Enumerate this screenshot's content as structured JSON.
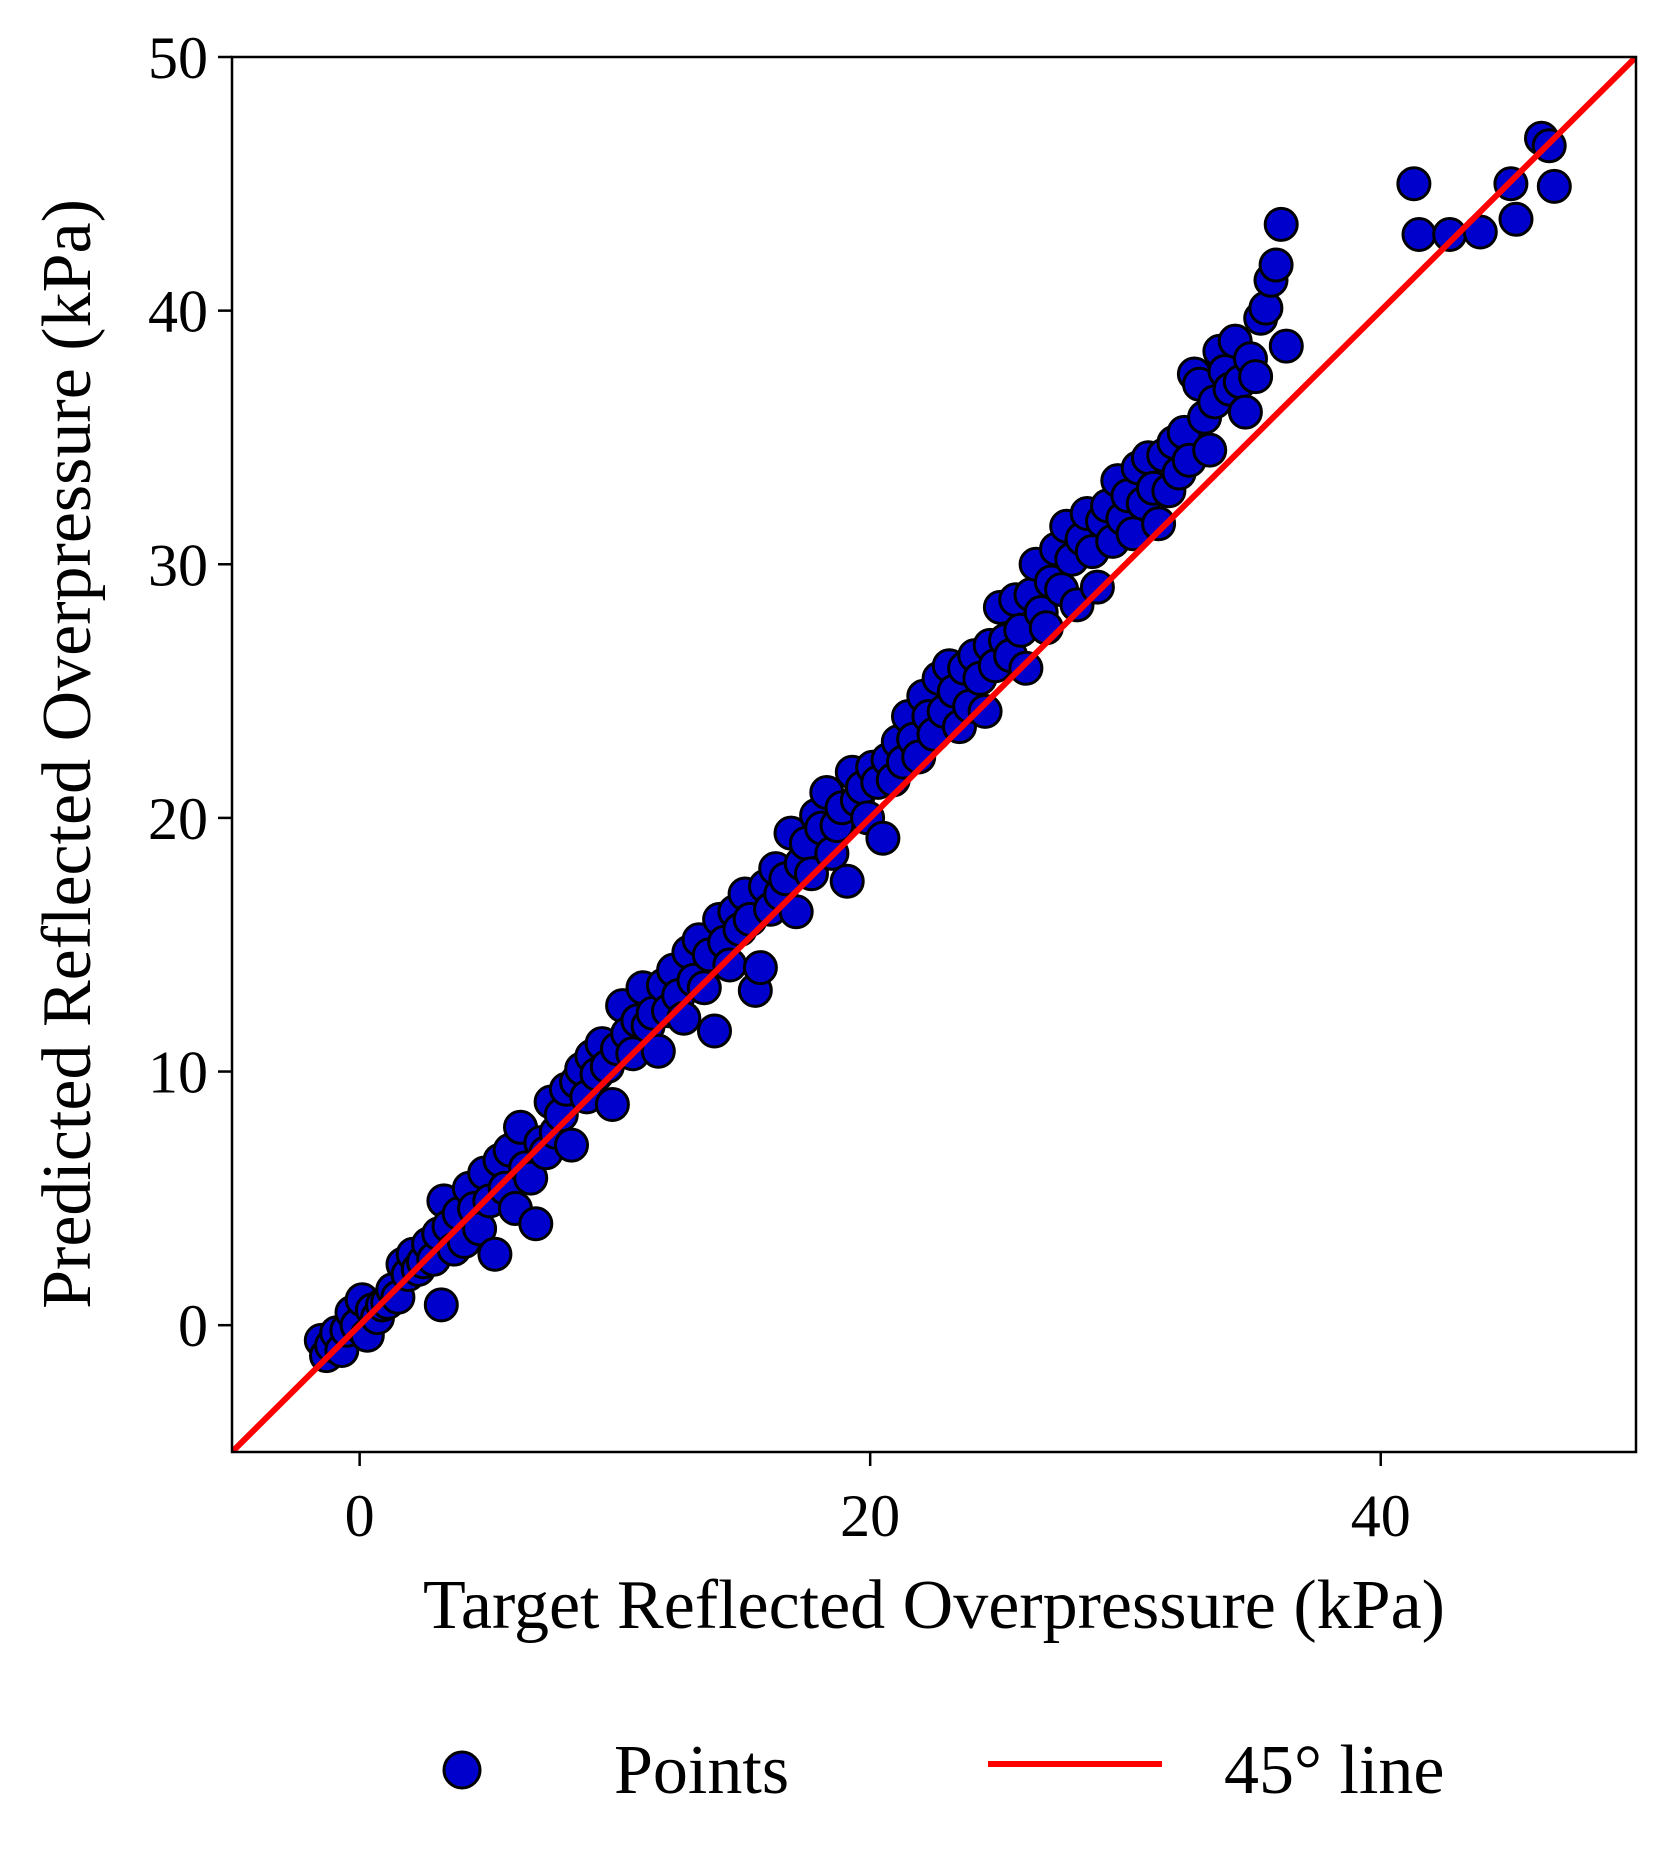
{
  "chart_data": {
    "type": "scatter",
    "title": "",
    "xlabel": "Target Reflected Overpressure (kPa)",
    "ylabel": "Predicted Reflected Overpressure (kPa)",
    "xlim": [
      -5,
      50
    ],
    "ylim": [
      -5,
      50
    ],
    "x_ticks": [
      0,
      20,
      40
    ],
    "y_ticks": [
      0,
      10,
      20,
      30,
      40,
      50
    ],
    "grid": false,
    "legend": {
      "placement": "bottom",
      "entries": [
        "Points",
        "45° line"
      ]
    },
    "colors": {
      "points_fill": "#0000cc",
      "points_edge": "#000000",
      "line": "#ff0000"
    },
    "series": [
      {
        "name": "Points",
        "type": "scatter",
        "points": [
          [
            -1.5,
            -0.6
          ],
          [
            -1.3,
            -1.2
          ],
          [
            -1.1,
            -0.8
          ],
          [
            -0.9,
            -0.3
          ],
          [
            -0.7,
            -1.0
          ],
          [
            -0.5,
            -0.2
          ],
          [
            -0.3,
            0.5
          ],
          [
            -0.1,
            0.0
          ],
          [
            0.1,
            1.0
          ],
          [
            0.3,
            -0.4
          ],
          [
            0.5,
            0.6
          ],
          [
            0.7,
            0.3
          ],
          [
            0.9,
            0.8
          ],
          [
            1.1,
            0.9
          ],
          [
            1.3,
            1.4
          ],
          [
            1.5,
            1.1
          ],
          [
            1.7,
            2.4
          ],
          [
            1.9,
            2.0
          ],
          [
            2.1,
            2.8
          ],
          [
            2.3,
            2.2
          ],
          [
            2.5,
            2.5
          ],
          [
            2.7,
            3.2
          ],
          [
            2.9,
            2.6
          ],
          [
            3.1,
            3.6
          ],
          [
            3.2,
            0.8
          ],
          [
            3.3,
            4.9
          ],
          [
            3.5,
            3.9
          ],
          [
            3.7,
            3.0
          ],
          [
            3.9,
            4.4
          ],
          [
            4.1,
            3.3
          ],
          [
            4.3,
            5.4
          ],
          [
            4.5,
            4.6
          ],
          [
            4.7,
            3.8
          ],
          [
            4.9,
            6.0
          ],
          [
            5.1,
            4.9
          ],
          [
            5.3,
            2.8
          ],
          [
            5.5,
            6.5
          ],
          [
            5.7,
            5.4
          ],
          [
            5.9,
            6.9
          ],
          [
            6.1,
            4.6
          ],
          [
            6.3,
            7.8
          ],
          [
            6.5,
            6.2
          ],
          [
            6.7,
            5.8
          ],
          [
            6.9,
            4.0
          ],
          [
            7.1,
            7.2
          ],
          [
            7.3,
            6.8
          ],
          [
            7.5,
            8.8
          ],
          [
            7.7,
            7.6
          ],
          [
            7.9,
            8.3
          ],
          [
            8.1,
            9.3
          ],
          [
            8.3,
            7.1
          ],
          [
            8.5,
            9.6
          ],
          [
            8.7,
            10.1
          ],
          [
            8.9,
            9.0
          ],
          [
            9.1,
            10.6
          ],
          [
            9.3,
            9.9
          ],
          [
            9.5,
            11.1
          ],
          [
            9.7,
            10.2
          ],
          [
            9.9,
            8.7
          ],
          [
            10.1,
            10.9
          ],
          [
            10.3,
            12.6
          ],
          [
            10.5,
            11.5
          ],
          [
            10.7,
            10.7
          ],
          [
            10.9,
            12.0
          ],
          [
            11.1,
            13.3
          ],
          [
            11.3,
            11.8
          ],
          [
            11.5,
            12.3
          ],
          [
            11.7,
            10.8
          ],
          [
            11.9,
            13.4
          ],
          [
            12.1,
            12.4
          ],
          [
            12.3,
            14.0
          ],
          [
            12.5,
            13.0
          ],
          [
            12.7,
            12.1
          ],
          [
            12.9,
            14.7
          ],
          [
            13.1,
            13.6
          ],
          [
            13.3,
            15.2
          ],
          [
            13.5,
            13.3
          ],
          [
            13.7,
            14.6
          ],
          [
            13.9,
            11.6
          ],
          [
            14.1,
            16.0
          ],
          [
            14.3,
            15.1
          ],
          [
            14.5,
            14.2
          ],
          [
            14.7,
            16.3
          ],
          [
            14.9,
            15.6
          ],
          [
            15.1,
            17.0
          ],
          [
            15.3,
            16.0
          ],
          [
            15.5,
            13.2
          ],
          [
            15.7,
            14.1
          ],
          [
            15.9,
            17.3
          ],
          [
            16.1,
            16.4
          ],
          [
            16.3,
            18.0
          ],
          [
            16.5,
            17.0
          ],
          [
            16.7,
            17.6
          ],
          [
            16.9,
            19.4
          ],
          [
            17.1,
            16.3
          ],
          [
            17.3,
            18.2
          ],
          [
            17.5,
            19.0
          ],
          [
            17.7,
            17.8
          ],
          [
            17.9,
            20.1
          ],
          [
            18.1,
            19.6
          ],
          [
            18.3,
            21.0
          ],
          [
            18.5,
            18.6
          ],
          [
            18.7,
            19.7
          ],
          [
            18.9,
            20.4
          ],
          [
            19.1,
            17.5
          ],
          [
            19.3,
            21.8
          ],
          [
            19.5,
            20.7
          ],
          [
            19.7,
            21.2
          ],
          [
            19.9,
            20.0
          ],
          [
            20.1,
            22.0
          ],
          [
            20.3,
            21.4
          ],
          [
            20.5,
            19.2
          ],
          [
            20.7,
            22.3
          ],
          [
            20.9,
            21.5
          ],
          [
            21.1,
            23.0
          ],
          [
            21.3,
            22.2
          ],
          [
            21.5,
            24.0
          ],
          [
            21.7,
            23.1
          ],
          [
            21.9,
            22.4
          ],
          [
            22.1,
            24.8
          ],
          [
            22.3,
            24.0
          ],
          [
            22.5,
            23.3
          ],
          [
            22.7,
            25.5
          ],
          [
            22.9,
            24.2
          ],
          [
            23.1,
            26.0
          ],
          [
            23.3,
            25.0
          ],
          [
            23.5,
            23.6
          ],
          [
            23.7,
            25.9
          ],
          [
            23.9,
            24.4
          ],
          [
            24.1,
            26.4
          ],
          [
            24.3,
            25.5
          ],
          [
            24.5,
            24.2
          ],
          [
            24.7,
            26.8
          ],
          [
            24.9,
            26.0
          ],
          [
            25.1,
            28.3
          ],
          [
            25.3,
            27.0
          ],
          [
            25.5,
            26.4
          ],
          [
            25.7,
            28.6
          ],
          [
            25.9,
            27.4
          ],
          [
            26.1,
            25.9
          ],
          [
            26.3,
            28.8
          ],
          [
            26.5,
            30.0
          ],
          [
            26.7,
            28.1
          ],
          [
            26.9,
            27.5
          ],
          [
            27.1,
            29.3
          ],
          [
            27.3,
            30.6
          ],
          [
            27.5,
            29.0
          ],
          [
            27.7,
            31.5
          ],
          [
            27.9,
            30.2
          ],
          [
            28.1,
            28.4
          ],
          [
            28.3,
            31.0
          ],
          [
            28.5,
            32.0
          ],
          [
            28.7,
            30.5
          ],
          [
            28.9,
            29.1
          ],
          [
            29.1,
            31.7
          ],
          [
            29.3,
            32.3
          ],
          [
            29.5,
            30.9
          ],
          [
            29.7,
            33.3
          ],
          [
            29.9,
            31.8
          ],
          [
            30.1,
            32.7
          ],
          [
            30.3,
            31.2
          ],
          [
            30.5,
            33.8
          ],
          [
            30.7,
            32.4
          ],
          [
            30.9,
            34.2
          ],
          [
            31.1,
            33.0
          ],
          [
            31.3,
            31.6
          ],
          [
            31.5,
            34.3
          ],
          [
            31.7,
            32.9
          ],
          [
            31.9,
            34.8
          ],
          [
            32.1,
            33.6
          ],
          [
            32.3,
            35.2
          ],
          [
            32.5,
            34.1
          ],
          [
            32.7,
            37.5
          ],
          [
            32.9,
            37.1
          ],
          [
            33.1,
            35.8
          ],
          [
            33.3,
            34.5
          ],
          [
            33.5,
            36.4
          ],
          [
            33.7,
            38.4
          ],
          [
            33.9,
            37.6
          ],
          [
            34.1,
            36.9
          ],
          [
            34.3,
            38.8
          ],
          [
            34.5,
            37.2
          ],
          [
            34.7,
            36.0
          ],
          [
            34.9,
            38.1
          ],
          [
            35.1,
            37.4
          ],
          [
            35.3,
            39.7
          ],
          [
            35.5,
            40.1
          ],
          [
            35.7,
            41.2
          ],
          [
            35.9,
            41.8
          ],
          [
            36.1,
            43.4
          ],
          [
            36.3,
            38.6
          ],
          [
            41.3,
            45.0
          ],
          [
            41.5,
            43.0
          ],
          [
            42.7,
            43.0
          ],
          [
            43.9,
            43.1
          ],
          [
            45.1,
            45.0
          ],
          [
            45.3,
            43.6
          ],
          [
            46.3,
            46.8
          ],
          [
            46.6,
            46.5
          ],
          [
            46.8,
            44.9
          ]
        ]
      },
      {
        "name": "45° line",
        "type": "line",
        "points": [
          [
            -5,
            -5
          ],
          [
            50,
            50
          ]
        ]
      }
    ]
  }
}
